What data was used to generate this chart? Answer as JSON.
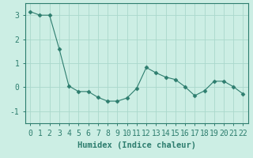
{
  "x": [
    0,
    1,
    2,
    3,
    4,
    5,
    6,
    7,
    8,
    9,
    10,
    11,
    12,
    13,
    14,
    15,
    16,
    17,
    18,
    19,
    20,
    21,
    22
  ],
  "y": [
    3.15,
    3.0,
    3.0,
    1.6,
    0.05,
    -0.18,
    -0.18,
    -0.42,
    -0.58,
    -0.58,
    -0.45,
    -0.05,
    0.82,
    0.6,
    0.42,
    0.32,
    0.02,
    -0.35,
    -0.15,
    0.25,
    0.25,
    0.02,
    -0.28
  ],
  "line_color": "#2d7d6e",
  "marker": "D",
  "marker_size": 2.5,
  "background_color": "#cceee4",
  "grid_color": "#aad8cc",
  "xlabel": "Humidex (Indice chaleur)",
  "xlabel_fontsize": 7.5,
  "tick_fontsize": 7,
  "ylim": [
    -1.5,
    3.5
  ],
  "xlim": [
    -0.5,
    22.5
  ],
  "yticks": [
    -1,
    0,
    1,
    2,
    3
  ],
  "xticks": [
    0,
    1,
    2,
    3,
    4,
    5,
    6,
    7,
    8,
    9,
    10,
    11,
    12,
    13,
    14,
    15,
    16,
    17,
    18,
    19,
    20,
    21,
    22
  ]
}
